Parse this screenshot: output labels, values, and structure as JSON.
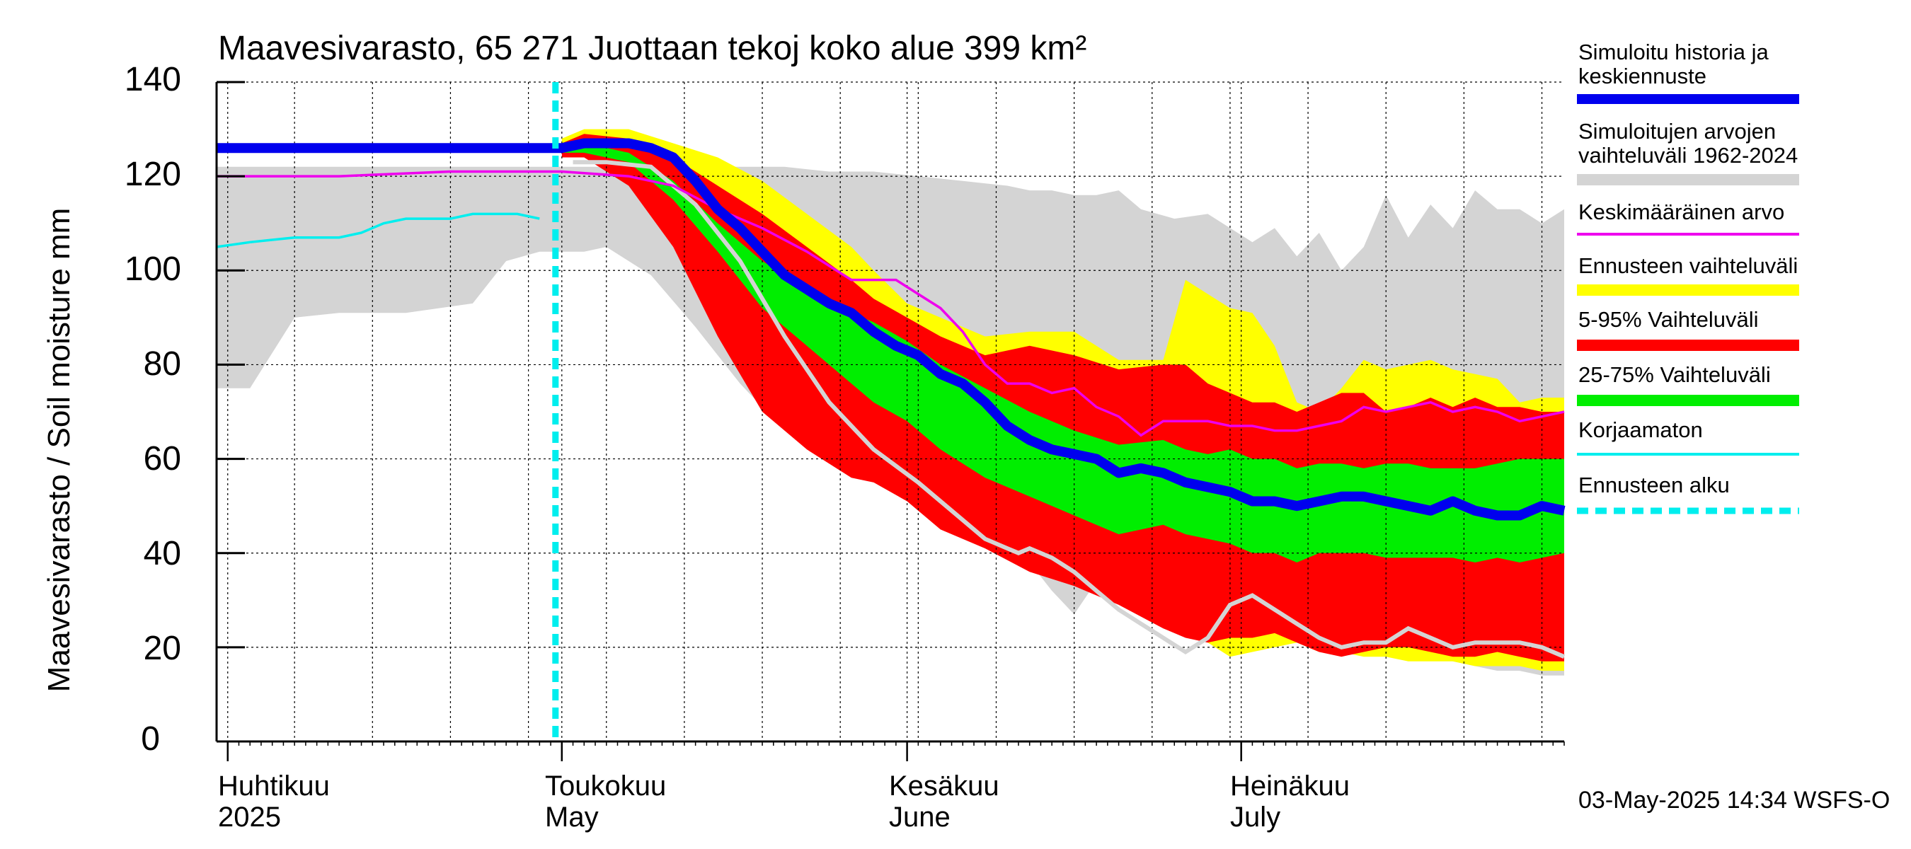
{
  "colors": {
    "hist_range": "#d4d4d4",
    "forecast_range": "#ffff00",
    "p5_95": "#ff0000",
    "p25_75": "#00ee00",
    "median": "#0000ee",
    "mean": "#ee00ee",
    "uncorrected": "#00eeee",
    "forecast_start": "#00eeee",
    "grey_line": "#d4d4d4"
  },
  "chart_data": {
    "type": "area",
    "title": "Maavesivarasto, 65 271 Juottaan tekoj koko alue 399 km²",
    "ylabel": "Maavesivarasto / Soil moisture   mm",
    "xlabel": "",
    "ylim": [
      0,
      140
    ],
    "y_ticks": [
      0,
      20,
      40,
      60,
      80,
      100,
      120,
      140
    ],
    "grid": true,
    "legend_position": "right",
    "x_unit": "day index (0 = 1 Apr 2025)",
    "xlim": [
      -1,
      120
    ],
    "month_labels": [
      {
        "day": 0,
        "fi": "Huhtikuu",
        "en": "2025"
      },
      {
        "day": 30,
        "fi": "Toukokuu",
        "en": "May"
      },
      {
        "day": 61,
        "fi": "Kesäkuu",
        "en": "June"
      },
      {
        "day": 91,
        "fi": "Heinäkuu",
        "en": "July"
      }
    ],
    "forecast_start_day": 30,
    "timestamp": "03-May-2025 14:34 WSFS-O",
    "legend": [
      {
        "label": "Simuloitu historia ja\nkeskiennuste",
        "color_key": "median",
        "style": "thick"
      },
      {
        "label": "Simuloitujen arvojen\nvaihteluväli 1962-2024",
        "color_key": "hist_range",
        "style": "band"
      },
      {
        "label": "Keskimääräinen arvo",
        "color_key": "mean",
        "style": "thin"
      },
      {
        "label": "Ennusteen vaihteluväli",
        "color_key": "forecast_range",
        "style": "band"
      },
      {
        "label": "5-95% Vaihteluväli",
        "color_key": "p5_95",
        "style": "band"
      },
      {
        "label": "25-75% Vaihteluväli",
        "color_key": "p25_75",
        "style": "band"
      },
      {
        "label": "Korjaamaton",
        "color_key": "uncorrected",
        "style": "thin"
      },
      {
        "label": "Ennusteen alku",
        "color_key": "forecast_start",
        "style": "dashed"
      }
    ],
    "series": {
      "hist_range": {
        "name": "Simuloitujen arvojen vaihteluväli 1962-2024",
        "x": [
          -1,
          2,
          6,
          10,
          16,
          22,
          25,
          28,
          32,
          34,
          38,
          42,
          46,
          50,
          54,
          58,
          62,
          66,
          70,
          72,
          74,
          76,
          78,
          80,
          82,
          85,
          88,
          92,
          94,
          96,
          98,
          100,
          102,
          104,
          106,
          108,
          110,
          112,
          114,
          116,
          118,
          120
        ],
        "upper": [
          122,
          122,
          122,
          122,
          122,
          122,
          122,
          122,
          122,
          122,
          122,
          122,
          122,
          122,
          121,
          121,
          120,
          119,
          118,
          117,
          117,
          116,
          116,
          117,
          113,
          111,
          112,
          106,
          109,
          103,
          108,
          100,
          105,
          116,
          107,
          114,
          109,
          117,
          113,
          113,
          110,
          113
        ],
        "lower": [
          75,
          75,
          90,
          91,
          91,
          93,
          102,
          104,
          104,
          105,
          99,
          88,
          76,
          66,
          61,
          58,
          55,
          50,
          45,
          38,
          32,
          27,
          34,
          41,
          40,
          37,
          33,
          30,
          25,
          22,
          22,
          20,
          19,
          18,
          19,
          18,
          17,
          16,
          15,
          15,
          14,
          14
        ]
      },
      "forecast_range": {
        "name": "Ennusteen vaihteluväli",
        "x": [
          30,
          32,
          36,
          40,
          44,
          48,
          52,
          56,
          58,
          61,
          64,
          68,
          72,
          76,
          80,
          84,
          86,
          88,
          90,
          92,
          94,
          96,
          98,
          100,
          102,
          104,
          106,
          108,
          110,
          112,
          114,
          116,
          118,
          120
        ],
        "upper": [
          128,
          130,
          130,
          127,
          124,
          119,
          112,
          105,
          100,
          93,
          90,
          86,
          87,
          87,
          81,
          81,
          98,
          95,
          92,
          91,
          84,
          72,
          70,
          75,
          81,
          79,
          80,
          81,
          79,
          78,
          77,
          72,
          73,
          73
        ],
        "lower": [
          125,
          125,
          122,
          112,
          100,
          82,
          65,
          57,
          55,
          55,
          50,
          46,
          42,
          37,
          32,
          27,
          23,
          21,
          18,
          19,
          20,
          21,
          19,
          19,
          18,
          18,
          17,
          17,
          17,
          16,
          16,
          16,
          15,
          15
        ]
      },
      "p5_95": {
        "name": "5-95% Vaihteluväli",
        "x": [
          30,
          32,
          36,
          40,
          44,
          48,
          52,
          56,
          58,
          61,
          64,
          68,
          72,
          76,
          80,
          84,
          86,
          88,
          90,
          92,
          94,
          96,
          98,
          100,
          102,
          104,
          106,
          108,
          110,
          112,
          114,
          116,
          118,
          120
        ],
        "upper": [
          127,
          129,
          128,
          124,
          118,
          112,
          105,
          98,
          94,
          90,
          86,
          82,
          84,
          82,
          79,
          80,
          80,
          76,
          74,
          72,
          72,
          70,
          72,
          74,
          74,
          70,
          71,
          73,
          71,
          73,
          71,
          71,
          70,
          70
        ],
        "lower": [
          124,
          124,
          118,
          105,
          86,
          70,
          62,
          56,
          55,
          51,
          45,
          41,
          36,
          33,
          29,
          24,
          22,
          21,
          22,
          22,
          23,
          21,
          19,
          18,
          19,
          20,
          20,
          19,
          18,
          18,
          19,
          18,
          17,
          17
        ]
      },
      "p25_75": {
        "name": "25-75% Vaihteluväli",
        "x": [
          30,
          32,
          36,
          40,
          44,
          48,
          52,
          56,
          58,
          61,
          64,
          68,
          72,
          76,
          80,
          84,
          86,
          88,
          90,
          92,
          94,
          96,
          98,
          100,
          102,
          104,
          106,
          108,
          110,
          112,
          114,
          116,
          118,
          120
        ],
        "upper": [
          126,
          127,
          125,
          119,
          110,
          102,
          96,
          91,
          89,
          85,
          80,
          75,
          70,
          66,
          63,
          64,
          62,
          61,
          62,
          60,
          60,
          58,
          59,
          59,
          58,
          59,
          59,
          58,
          58,
          58,
          59,
          60,
          60,
          60
        ],
        "lower": [
          125,
          125,
          123,
          115,
          104,
          92,
          84,
          76,
          72,
          68,
          62,
          56,
          52,
          48,
          44,
          46,
          44,
          43,
          42,
          40,
          40,
          38,
          40,
          40,
          40,
          39,
          39,
          39,
          39,
          38,
          39,
          38,
          39,
          40
        ]
      },
      "median": {
        "name": "Simuloitu historia ja keskiennuste",
        "x": [
          -1,
          10,
          20,
          30,
          32,
          34,
          36,
          38,
          40,
          42,
          44,
          46,
          48,
          50,
          52,
          54,
          56,
          58,
          60,
          62,
          64,
          66,
          68,
          70,
          72,
          74,
          76,
          78,
          80,
          82,
          84,
          86,
          88,
          90,
          92,
          94,
          96,
          98,
          100,
          102,
          104,
          106,
          108,
          110,
          112,
          114,
          116,
          118,
          120
        ],
        "values": [
          126,
          126,
          126,
          126,
          127,
          127,
          127,
          126,
          124,
          119,
          113,
          109,
          104,
          99,
          96,
          93,
          91,
          87,
          84,
          82,
          78,
          76,
          72,
          67,
          64,
          62,
          61,
          60,
          57,
          58,
          57,
          55,
          54,
          53,
          51,
          51,
          50,
          51,
          52,
          52,
          51,
          50,
          49,
          51,
          49,
          48,
          48,
          50,
          49
        ]
      },
      "mean": {
        "name": "Keskimääräinen arvo",
        "x": [
          -1,
          10,
          20,
          30,
          36,
          40,
          44,
          48,
          52,
          56,
          60,
          62,
          64,
          66,
          68,
          70,
          72,
          74,
          76,
          78,
          80,
          82,
          84,
          86,
          88,
          90,
          92,
          94,
          96,
          98,
          100,
          102,
          104,
          106,
          108,
          110,
          112,
          114,
          116,
          118,
          120
        ],
        "values": [
          120,
          120,
          121,
          121,
          120,
          118,
          113,
          109,
          104,
          98,
          98,
          95,
          92,
          87,
          80,
          76,
          76,
          74,
          75,
          71,
          69,
          65,
          68,
          68,
          68,
          67,
          67,
          66,
          66,
          67,
          68,
          71,
          70,
          71,
          72,
          70,
          71,
          70,
          68,
          69,
          70
        ]
      },
      "grey_line": {
        "name": "",
        "x": [
          31,
          34,
          38,
          42,
          46,
          50,
          54,
          58,
          62,
          66,
          68,
          70,
          71,
          72,
          74,
          76,
          78,
          80,
          82,
          84,
          86,
          88,
          90,
          92,
          94,
          96,
          98,
          100,
          102,
          104,
          106,
          108,
          110,
          112,
          114,
          116,
          118,
          120
        ],
        "values": [
          123,
          123,
          122,
          114,
          102,
          86,
          72,
          62,
          55,
          47,
          43,
          41,
          40,
          41,
          39,
          36,
          32,
          28,
          25,
          22,
          19,
          22,
          29,
          31,
          28,
          25,
          22,
          20,
          21,
          21,
          24,
          22,
          20,
          21,
          21,
          21,
          20,
          18
        ]
      },
      "uncorrected": {
        "name": "Korjaamaton",
        "x": [
          -1,
          2,
          6,
          10,
          12,
          14,
          16,
          18,
          20,
          22,
          24,
          26,
          28
        ],
        "values": [
          105,
          106,
          107,
          107,
          108,
          110,
          111,
          111,
          111,
          112,
          112,
          112,
          111
        ]
      }
    }
  }
}
